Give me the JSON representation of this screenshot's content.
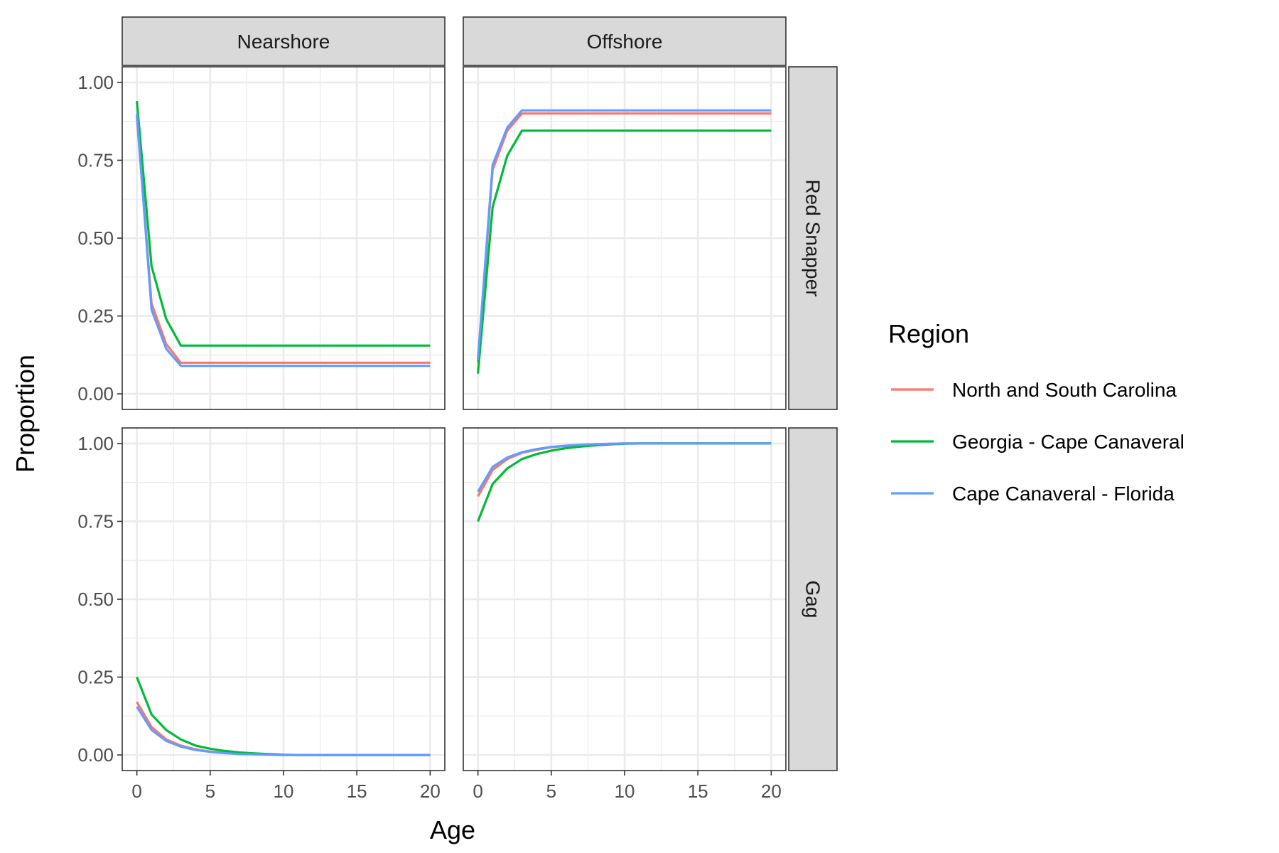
{
  "chart_data": {
    "type": "line",
    "xlabel": "Age",
    "ylabel": "Proportion",
    "xlim": [
      0,
      20
    ],
    "ylim": [
      0,
      1
    ],
    "x_ticks": [
      0,
      5,
      10,
      15,
      20
    ],
    "x_tick_labels": [
      "0",
      "5",
      "10",
      "15",
      "20"
    ],
    "y_ticks": [
      0,
      0.25,
      0.5,
      0.75,
      1.0
    ],
    "y_tick_labels": [
      "0.00",
      "0.25",
      "0.50",
      "0.75",
      "1.00"
    ],
    "grid": true,
    "column_facets": [
      "Nearshore",
      "Offshore"
    ],
    "row_facets": [
      "Red Snapper",
      "Gag"
    ],
    "legend": {
      "title": "Region",
      "placement": "right",
      "entries": [
        {
          "name": "North and South Carolina",
          "color": "#F8766D"
        },
        {
          "name": "Georgia - Cape Canaveral",
          "color": "#00BA38"
        },
        {
          "name": "Cape Canaveral - Florida",
          "color": "#619CFF"
        }
      ]
    },
    "x": [
      0,
      1,
      2,
      3,
      4,
      5,
      6,
      7,
      8,
      9,
      10,
      11,
      12,
      13,
      14,
      15,
      16,
      17,
      18,
      19,
      20
    ],
    "panels": [
      {
        "column": "Nearshore",
        "row": "Red Snapper",
        "series": [
          {
            "name": "North and South Carolina",
            "values": [
              0.89,
              0.29,
              0.16,
              0.1,
              0.1,
              0.1,
              0.1,
              0.1,
              0.1,
              0.1,
              0.1,
              0.1,
              0.1,
              0.1,
              0.1,
              0.1,
              0.1,
              0.1,
              0.1,
              0.1,
              0.1
            ]
          },
          {
            "name": "Georgia - Cape Canaveral",
            "values": [
              0.94,
              0.41,
              0.24,
              0.155,
              0.155,
              0.155,
              0.155,
              0.155,
              0.155,
              0.155,
              0.155,
              0.155,
              0.155,
              0.155,
              0.155,
              0.155,
              0.155,
              0.155,
              0.155,
              0.155,
              0.155
            ]
          },
          {
            "name": "Cape Canaveral - Florida",
            "values": [
              0.9,
              0.27,
              0.145,
              0.09,
              0.09,
              0.09,
              0.09,
              0.09,
              0.09,
              0.09,
              0.09,
              0.09,
              0.09,
              0.09,
              0.09,
              0.09,
              0.09,
              0.09,
              0.09,
              0.09,
              0.09
            ]
          }
        ]
      },
      {
        "column": "Offshore",
        "row": "Red Snapper",
        "series": [
          {
            "name": "North and South Carolina",
            "values": [
              0.1,
              0.72,
              0.845,
              0.9,
              0.9,
              0.9,
              0.9,
              0.9,
              0.9,
              0.9,
              0.9,
              0.9,
              0.9,
              0.9,
              0.9,
              0.9,
              0.9,
              0.9,
              0.9,
              0.9,
              0.9
            ]
          },
          {
            "name": "Georgia - Cape Canaveral",
            "values": [
              0.065,
              0.6,
              0.765,
              0.845,
              0.845,
              0.845,
              0.845,
              0.845,
              0.845,
              0.845,
              0.845,
              0.845,
              0.845,
              0.845,
              0.845,
              0.845,
              0.845,
              0.845,
              0.845,
              0.845,
              0.845
            ]
          },
          {
            "name": "Cape Canaveral - Florida",
            "values": [
              0.11,
              0.735,
              0.855,
              0.91,
              0.91,
              0.91,
              0.91,
              0.91,
              0.91,
              0.91,
              0.91,
              0.91,
              0.91,
              0.91,
              0.91,
              0.91,
              0.91,
              0.91,
              0.91,
              0.91,
              0.91
            ]
          }
        ]
      },
      {
        "column": "Nearshore",
        "row": "Gag",
        "series": [
          {
            "name": "North and South Carolina",
            "values": [
              0.17,
              0.09,
              0.05,
              0.03,
              0.018,
              0.011,
              0.007,
              0.004,
              0.002,
              0.001,
              0.0,
              0.0,
              0.0,
              0.0,
              0.0,
              0.0,
              0.0,
              0.0,
              0.0,
              0.0,
              0.0
            ]
          },
          {
            "name": "Georgia - Cape Canaveral",
            "values": [
              0.25,
              0.13,
              0.08,
              0.05,
              0.03,
              0.02,
              0.013,
              0.008,
              0.005,
              0.003,
              0.001,
              0.0,
              0.0,
              0.0,
              0.0,
              0.0,
              0.0,
              0.0,
              0.0,
              0.0,
              0.0
            ]
          },
          {
            "name": "Cape Canaveral - Florida",
            "values": [
              0.155,
              0.08,
              0.045,
              0.027,
              0.016,
              0.01,
              0.006,
              0.003,
              0.002,
              0.001,
              0.0,
              0.0,
              0.0,
              0.0,
              0.0,
              0.0,
              0.0,
              0.0,
              0.0,
              0.0,
              0.0
            ]
          }
        ]
      },
      {
        "column": "Offshore",
        "row": "Gag",
        "series": [
          {
            "name": "North and South Carolina",
            "values": [
              0.83,
              0.915,
              0.95,
              0.97,
              0.98,
              0.988,
              0.992,
              0.995,
              0.997,
              0.999,
              1.0,
              1.0,
              1.0,
              1.0,
              1.0,
              1.0,
              1.0,
              1.0,
              1.0,
              1.0,
              1.0
            ]
          },
          {
            "name": "Georgia - Cape Canaveral",
            "values": [
              0.75,
              0.87,
              0.92,
              0.95,
              0.966,
              0.977,
              0.985,
              0.99,
              0.994,
              0.997,
              0.999,
              1.0,
              1.0,
              1.0,
              1.0,
              1.0,
              1.0,
              1.0,
              1.0,
              1.0,
              1.0
            ]
          },
          {
            "name": "Cape Canaveral - Florida",
            "values": [
              0.845,
              0.925,
              0.955,
              0.972,
              0.982,
              0.989,
              0.993,
              0.996,
              0.998,
              0.999,
              1.0,
              1.0,
              1.0,
              1.0,
              1.0,
              1.0,
              1.0,
              1.0,
              1.0,
              1.0,
              1.0
            ]
          }
        ]
      }
    ]
  }
}
